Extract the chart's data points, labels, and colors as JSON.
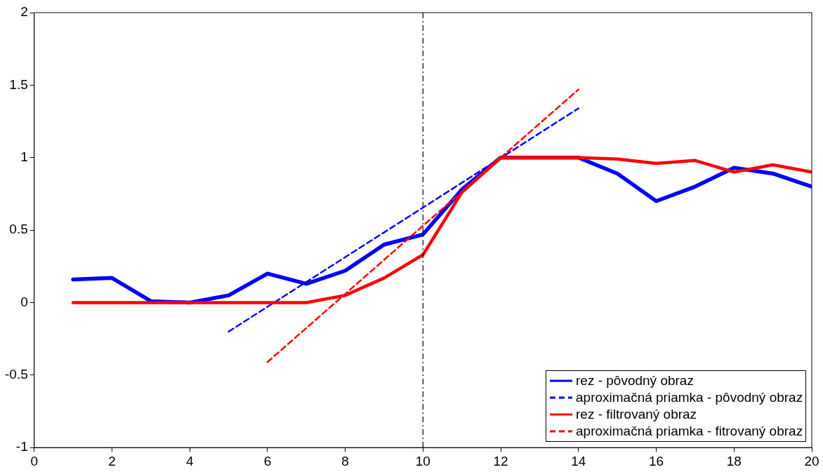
{
  "chart_data": {
    "type": "line",
    "x": [
      1,
      2,
      3,
      4,
      5,
      6,
      7,
      8,
      9,
      10,
      11,
      12,
      13,
      14,
      15,
      16,
      17,
      18,
      19,
      20
    ],
    "series": [
      {
        "name": "rez - pôvodný obraz",
        "color": "#0000ff",
        "line_style": "solid",
        "values": [
          0.16,
          0.17,
          0.01,
          0.0,
          0.05,
          0.2,
          0.13,
          0.22,
          0.4,
          0.47,
          0.78,
          1.0,
          1.0,
          1.0,
          0.89,
          0.7,
          0.8,
          0.93,
          0.89,
          0.8
        ]
      },
      {
        "name": "aproximačná priamka - pôvodný obraz",
        "color": "#0000ff",
        "line_style": "dashed",
        "x": [
          5,
          14
        ],
        "values": [
          -0.2,
          1.34
        ]
      },
      {
        "name": "rez - filtrovaný obraz",
        "color": "#ff0000",
        "line_style": "solid",
        "values": [
          0,
          0,
          0,
          0,
          0,
          0,
          0,
          0.05,
          0.17,
          0.33,
          0.76,
          1.0,
          1.0,
          1.0,
          0.99,
          0.96,
          0.98,
          0.9,
          0.95,
          0.9
        ]
      },
      {
        "name": "aproximačná priamka - fitrovaný obraz",
        "color": "#ff0000",
        "line_style": "dashed",
        "x": [
          6,
          14
        ],
        "values": [
          -0.41,
          1.47
        ]
      }
    ],
    "xlim": [
      0,
      20
    ],
    "xticks": [
      0,
      2,
      4,
      6,
      8,
      10,
      12,
      14,
      16,
      18,
      20
    ],
    "ylim": [
      -1,
      2
    ],
    "yticks": [
      -1,
      -0.5,
      0,
      0.5,
      1,
      1.5,
      2
    ],
    "ref_lines": [
      {
        "axis": "x",
        "value": 10,
        "color": "#000000",
        "line_style": "dashdot"
      }
    ],
    "grid": false,
    "legend": "bottom right",
    "marker": "none"
  }
}
